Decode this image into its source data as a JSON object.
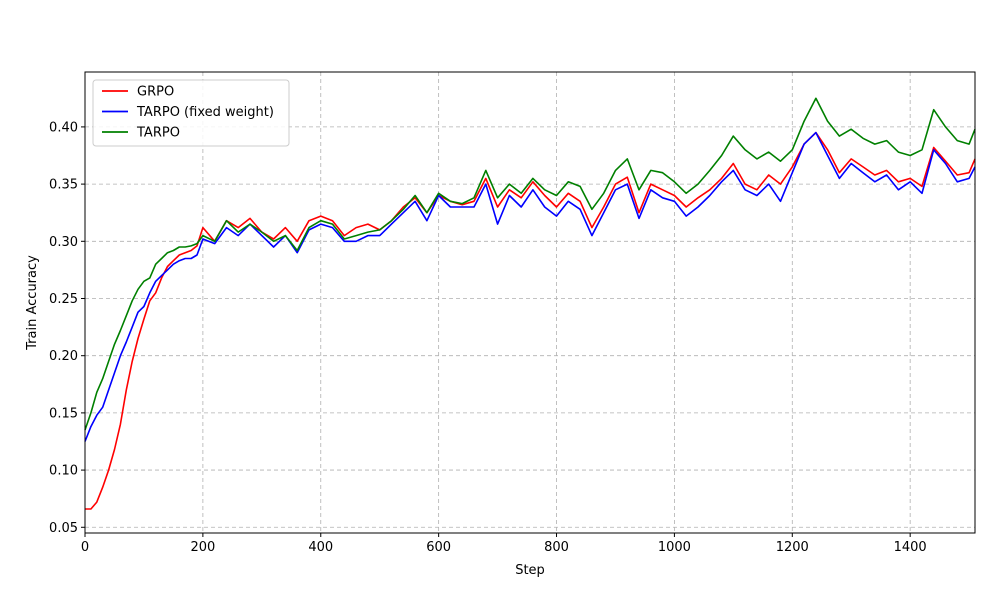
{
  "chart_data": {
    "type": "line",
    "title": "",
    "xlabel": "Step",
    "ylabel": "Train Accuracy",
    "xlim": [
      0,
      1510
    ],
    "ylim": [
      0.045,
      0.448
    ],
    "xticks": [
      0,
      200,
      400,
      600,
      800,
      1000,
      1200,
      1400
    ],
    "yticks": [
      0.05,
      0.1,
      0.15,
      0.2,
      0.25,
      0.3,
      0.35,
      0.4
    ],
    "grid": true,
    "legend_position": "top-left",
    "x": [
      0,
      10,
      20,
      30,
      40,
      50,
      60,
      70,
      80,
      90,
      100,
      110,
      120,
      130,
      140,
      150,
      160,
      170,
      180,
      190,
      200,
      220,
      240,
      260,
      280,
      300,
      320,
      340,
      360,
      380,
      400,
      420,
      440,
      460,
      480,
      500,
      520,
      540,
      560,
      580,
      600,
      620,
      640,
      660,
      680,
      700,
      720,
      740,
      760,
      780,
      800,
      820,
      840,
      860,
      880,
      900,
      920,
      940,
      960,
      980,
      1000,
      1020,
      1040,
      1060,
      1080,
      1100,
      1120,
      1140,
      1160,
      1180,
      1200,
      1220,
      1240,
      1260,
      1280,
      1300,
      1320,
      1340,
      1360,
      1380,
      1400,
      1420,
      1440,
      1460,
      1480,
      1500,
      1510
    ],
    "series": [
      {
        "name": "GRPO",
        "color": "#ff0000",
        "values": [
          0.066,
          0.066,
          0.072,
          0.085,
          0.1,
          0.118,
          0.14,
          0.17,
          0.195,
          0.215,
          0.232,
          0.248,
          0.255,
          0.268,
          0.278,
          0.283,
          0.288,
          0.29,
          0.292,
          0.296,
          0.312,
          0.3,
          0.318,
          0.312,
          0.32,
          0.308,
          0.302,
          0.312,
          0.3,
          0.318,
          0.322,
          0.318,
          0.305,
          0.312,
          0.315,
          0.31,
          0.318,
          0.33,
          0.338,
          0.325,
          0.34,
          0.335,
          0.332,
          0.335,
          0.355,
          0.33,
          0.345,
          0.338,
          0.352,
          0.34,
          0.33,
          0.342,
          0.335,
          0.312,
          0.33,
          0.35,
          0.356,
          0.325,
          0.35,
          0.345,
          0.34,
          0.33,
          0.338,
          0.345,
          0.355,
          0.368,
          0.35,
          0.345,
          0.358,
          0.35,
          0.365,
          0.385,
          0.395,
          0.38,
          0.36,
          0.372,
          0.365,
          0.358,
          0.362,
          0.352,
          0.355,
          0.348,
          0.382,
          0.37,
          0.358,
          0.36,
          0.372
        ]
      },
      {
        "name": "TARPO (fixed weight)",
        "color": "#0000ff",
        "values": [
          0.125,
          0.138,
          0.148,
          0.155,
          0.17,
          0.185,
          0.2,
          0.212,
          0.225,
          0.238,
          0.243,
          0.255,
          0.265,
          0.27,
          0.275,
          0.28,
          0.283,
          0.285,
          0.285,
          0.288,
          0.302,
          0.298,
          0.312,
          0.305,
          0.315,
          0.305,
          0.295,
          0.305,
          0.29,
          0.31,
          0.315,
          0.312,
          0.3,
          0.3,
          0.305,
          0.305,
          0.315,
          0.325,
          0.335,
          0.318,
          0.34,
          0.33,
          0.33,
          0.33,
          0.35,
          0.315,
          0.34,
          0.33,
          0.345,
          0.33,
          0.322,
          0.335,
          0.328,
          0.305,
          0.325,
          0.345,
          0.35,
          0.32,
          0.345,
          0.338,
          0.335,
          0.322,
          0.33,
          0.34,
          0.352,
          0.362,
          0.345,
          0.34,
          0.35,
          0.335,
          0.36,
          0.385,
          0.395,
          0.375,
          0.355,
          0.368,
          0.36,
          0.352,
          0.358,
          0.345,
          0.352,
          0.342,
          0.38,
          0.368,
          0.352,
          0.355,
          0.365
        ]
      },
      {
        "name": "TARPO",
        "color": "#008000",
        "values": [
          0.135,
          0.15,
          0.168,
          0.18,
          0.195,
          0.21,
          0.222,
          0.235,
          0.248,
          0.258,
          0.265,
          0.268,
          0.28,
          0.285,
          0.29,
          0.292,
          0.295,
          0.295,
          0.296,
          0.298,
          0.305,
          0.3,
          0.318,
          0.308,
          0.315,
          0.308,
          0.3,
          0.305,
          0.292,
          0.312,
          0.318,
          0.315,
          0.302,
          0.305,
          0.308,
          0.31,
          0.318,
          0.328,
          0.34,
          0.325,
          0.342,
          0.335,
          0.333,
          0.338,
          0.362,
          0.338,
          0.35,
          0.342,
          0.355,
          0.345,
          0.34,
          0.352,
          0.348,
          0.328,
          0.342,
          0.362,
          0.372,
          0.345,
          0.362,
          0.36,
          0.352,
          0.342,
          0.35,
          0.362,
          0.375,
          0.392,
          0.38,
          0.372,
          0.378,
          0.37,
          0.38,
          0.405,
          0.425,
          0.405,
          0.392,
          0.398,
          0.39,
          0.385,
          0.388,
          0.378,
          0.375,
          0.38,
          0.415,
          0.4,
          0.388,
          0.385,
          0.398
        ]
      }
    ]
  }
}
